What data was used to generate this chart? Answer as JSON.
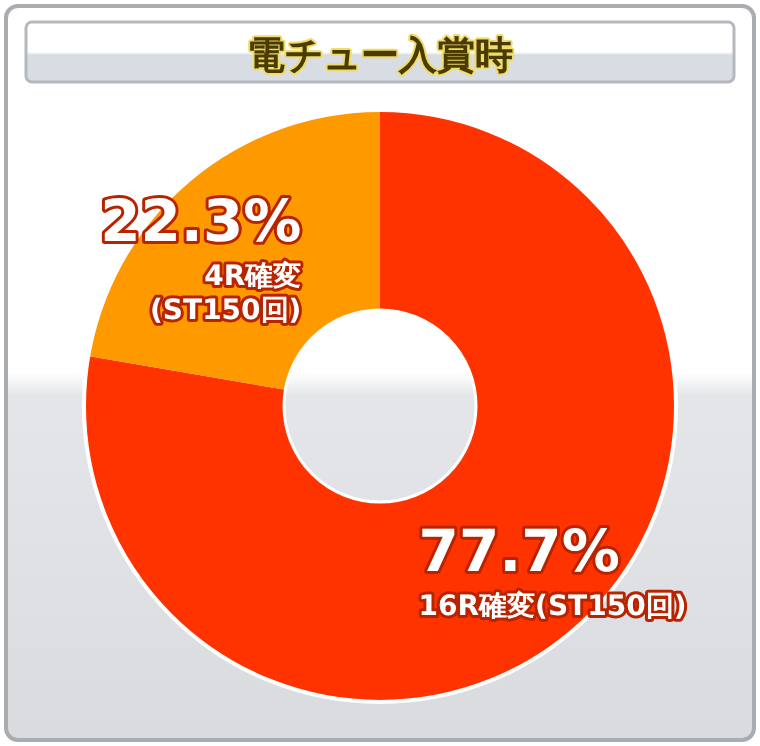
{
  "chart_data": {
    "type": "donut",
    "title": "電チュー入賞時",
    "categories": [
      "16R確変(ST150回)",
      "4R確変(ST150回)"
    ],
    "values": [
      77.7,
      22.3
    ],
    "colors": [
      "#ff3300",
      "#ff9900"
    ],
    "value_labels": [
      "77.7%",
      "22.3%"
    ]
  }
}
